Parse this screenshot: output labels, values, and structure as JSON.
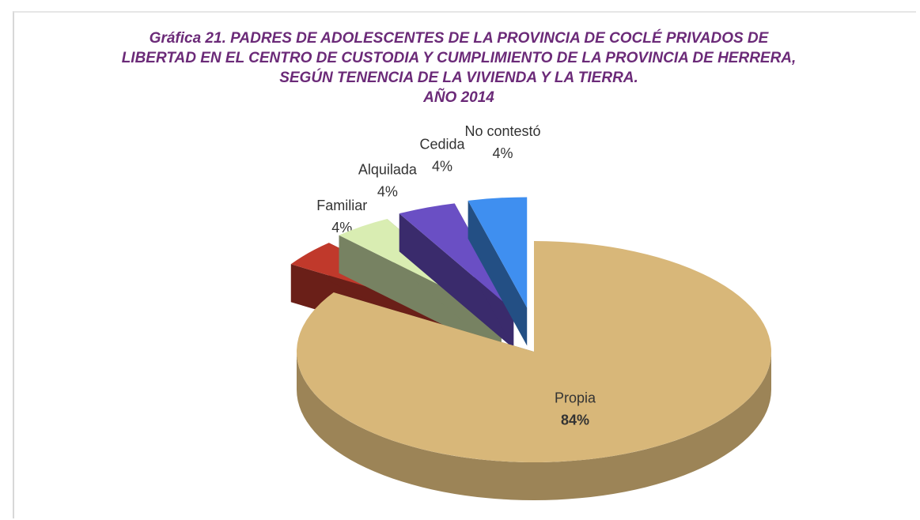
{
  "chart_data": {
    "type": "pie",
    "title": "Gráfica 21.  PADRES DE ADOLESCENTES DE LA PROVINCIA DE COCLÉ PRIVADOS DE LIBERTAD EN EL CENTRO DE CUSTODIA Y CUMPLIMIENTO DE LA PROVINCIA DE HERRERA, SEGÚN  TENENCIA DE LA VIVIENDA Y LA TIERRA.",
    "subtitle": "AÑO 2014",
    "categories": [
      "Propia",
      "Familiar",
      "Alquilada",
      "Cedida",
      "No contestó"
    ],
    "values": [
      84,
      4,
      4,
      4,
      4
    ],
    "value_labels": [
      "84%",
      "4%",
      "4%",
      "4%",
      "4%"
    ],
    "colors": [
      "#d8b779",
      "#c0392b",
      "#d9edb2",
      "#6a4fc4",
      "#3f8ff0"
    ]
  }
}
